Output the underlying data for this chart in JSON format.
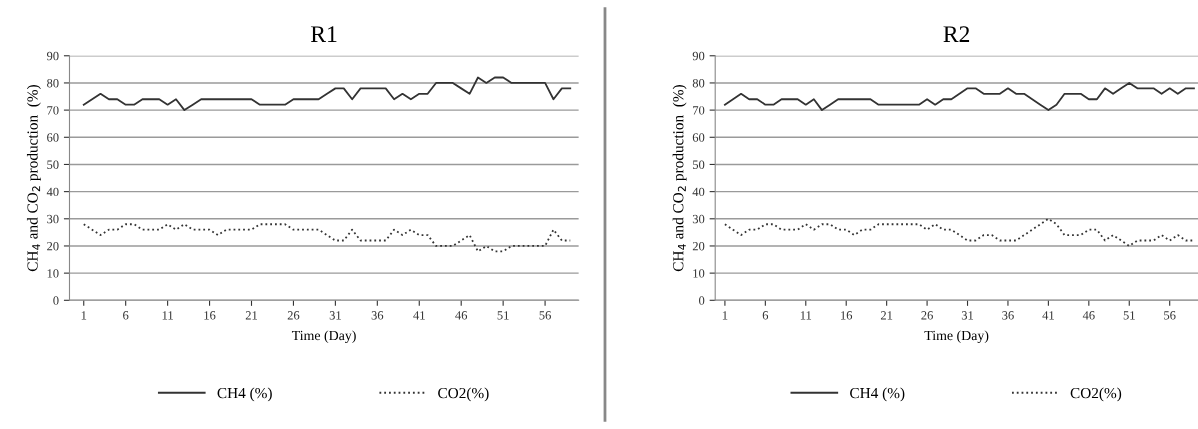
{
  "chart_data": [
    {
      "type": "line",
      "title": "R1",
      "xlabel": "Time (Day)",
      "ylabel": "CH$_{4}$ and CO$_{2}$ production  (%)",
      "x": [
        1,
        2,
        3,
        4,
        5,
        6,
        7,
        8,
        9,
        10,
        11,
        12,
        13,
        14,
        15,
        16,
        17,
        18,
        19,
        20,
        21,
        22,
        23,
        24,
        25,
        26,
        27,
        28,
        29,
        30,
        31,
        32,
        33,
        34,
        35,
        36,
        37,
        38,
        39,
        40,
        41,
        42,
        43,
        44,
        45,
        46,
        47,
        48,
        49,
        50,
        51,
        52,
        53,
        54,
        55,
        56,
        57,
        58,
        59
      ],
      "series": [
        {
          "name": "CH4 (%)",
          "color": "#333333",
          "line_style": "solid",
          "values": [
            72,
            74,
            76,
            74,
            74,
            72,
            72,
            74,
            74,
            74,
            72,
            74,
            70,
            72,
            74,
            74,
            74,
            74,
            74,
            74,
            74,
            72,
            72,
            72,
            72,
            74,
            74,
            74,
            74,
            76,
            78,
            78,
            74,
            78,
            78,
            78,
            78,
            74,
            76,
            74,
            76,
            76,
            80,
            80,
            80,
            78,
            76,
            82,
            80,
            82,
            82,
            80,
            80,
            80,
            80,
            80,
            74,
            78,
            78
          ]
        },
        {
          "name": "CO2(%)",
          "color": "#333333",
          "line_style": "dotted",
          "values": [
            28,
            26,
            24,
            26,
            26,
            28,
            28,
            26,
            26,
            26,
            28,
            26,
            28,
            26,
            26,
            26,
            24,
            26,
            26,
            26,
            26,
            28,
            28,
            28,
            28,
            26,
            26,
            26,
            26,
            24,
            22,
            22,
            26,
            22,
            22,
            22,
            22,
            26,
            24,
            26,
            24,
            24,
            20,
            20,
            20,
            22,
            24,
            18,
            20,
            18,
            18,
            20,
            20,
            20,
            20,
            20,
            26,
            22,
            22
          ]
        }
      ],
      "xlim": [
        -0.7,
        60
      ],
      "xticks": [
        1,
        6,
        11,
        16,
        21,
        26,
        31,
        36,
        41,
        46,
        51,
        56
      ],
      "ylim": [
        0,
        90
      ],
      "yticks": [
        0,
        10,
        20,
        30,
        40,
        50,
        60,
        70,
        80,
        90
      ],
      "grid": "y",
      "legend": "bottom",
      "marker": "none"
    },
    {
      "type": "line",
      "title": "R2",
      "xlabel": "Time (Day)",
      "ylabel": "CH$_{4}$ and CO$_{2}$ production  (%)",
      "x": [
        1,
        2,
        3,
        4,
        5,
        6,
        7,
        8,
        9,
        10,
        11,
        12,
        13,
        14,
        15,
        16,
        17,
        18,
        19,
        20,
        21,
        22,
        23,
        24,
        25,
        26,
        27,
        28,
        29,
        30,
        31,
        32,
        33,
        34,
        35,
        36,
        37,
        38,
        39,
        40,
        41,
        42,
        43,
        44,
        45,
        46,
        47,
        48,
        49,
        50,
        51,
        52,
        53,
        54,
        55,
        56,
        57,
        58,
        59
      ],
      "series": [
        {
          "name": "CH4 (%)",
          "color": "#333333",
          "line_style": "solid",
          "values": [
            72,
            74,
            76,
            74,
            74,
            72,
            72,
            74,
            74,
            74,
            72,
            74,
            70,
            72,
            74,
            74,
            74,
            74,
            74,
            72,
            72,
            72,
            72,
            72,
            72,
            74,
            72,
            74,
            74,
            76,
            78,
            78,
            76,
            76,
            76,
            78,
            76,
            76,
            74,
            72,
            70,
            72,
            76,
            76,
            76,
            74,
            74,
            78,
            76,
            78,
            80,
            78,
            78,
            78,
            76,
            78,
            76,
            78,
            78
          ]
        },
        {
          "name": "CO2(%)",
          "color": "#333333",
          "line_style": "dotted",
          "values": [
            28,
            26,
            24,
            26,
            26,
            28,
            28,
            26,
            26,
            26,
            28,
            26,
            28,
            28,
            26,
            26,
            24,
            26,
            26,
            28,
            28,
            28,
            28,
            28,
            28,
            26,
            28,
            26,
            26,
            24,
            22,
            22,
            24,
            24,
            22,
            22,
            22,
            24,
            26,
            28,
            30,
            28,
            24,
            24,
            24,
            26,
            26,
            22,
            24,
            22,
            20,
            22,
            22,
            22,
            24,
            22,
            24,
            22,
            22
          ]
        }
      ],
      "xlim": [
        -0.2,
        59.5
      ],
      "xticks": [
        1,
        6,
        11,
        16,
        21,
        26,
        31,
        36,
        41,
        46,
        51,
        56
      ],
      "ylim": [
        0,
        90
      ],
      "yticks": [
        0,
        10,
        20,
        30,
        40,
        50,
        60,
        70,
        80,
        90
      ],
      "grid": "y",
      "legend": "bottom",
      "marker": "none"
    }
  ]
}
